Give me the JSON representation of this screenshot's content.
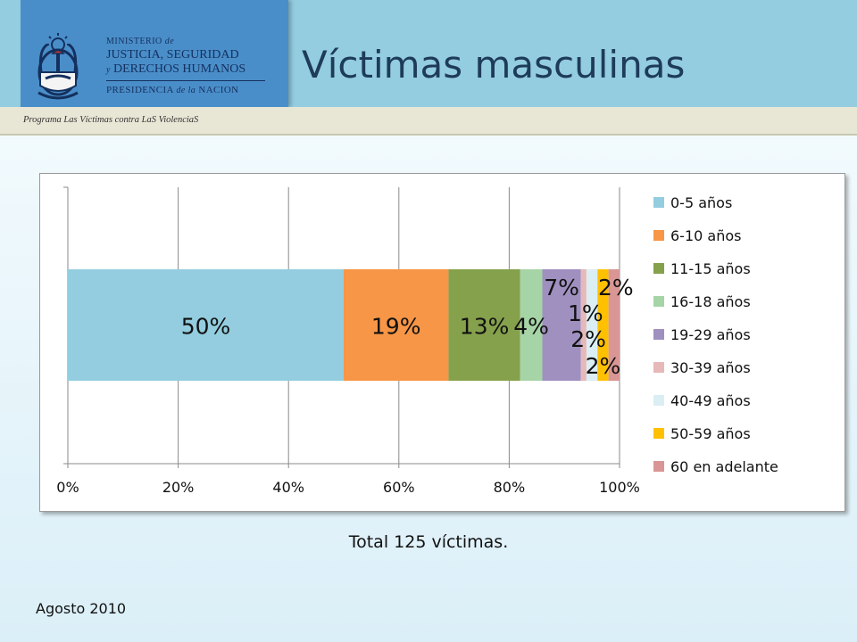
{
  "header": {
    "ministry_line1": "MINISTERIO",
    "ministry_line1_de": "de",
    "ministry_line2": "JUSTICIA, SEGURIDAD",
    "ministry_line3_y": "y",
    "ministry_line3": "DERECHOS HUMANOS",
    "presidency_a": "PRESIDENCIA",
    "presidency_de": "de la",
    "presidency_b": "NACION",
    "program": "Programa Las Víctimas contra LaS ViolenciaS"
  },
  "slide": {
    "title": "Víctimas masculinas",
    "total": "Total 125 víctimas.",
    "date": "Agosto 2010"
  },
  "chart_data": {
    "type": "bar",
    "orientation": "horizontal",
    "stacked": "100%",
    "categories": [
      ""
    ],
    "series": [
      {
        "name": "0-5 años",
        "values": [
          50
        ],
        "label": "50%",
        "color": "#93cddf"
      },
      {
        "name": "6-10 años",
        "values": [
          19
        ],
        "label": "19%",
        "color": "#f79646"
      },
      {
        "name": "11-15 años",
        "values": [
          13
        ],
        "label": "13%",
        "color": "#86a14c"
      },
      {
        "name": "16-18 años",
        "values": [
          4
        ],
        "label": "4%",
        "color": "#a6d4a6"
      },
      {
        "name": "19-29 años",
        "values": [
          7
        ],
        "label": "7%",
        "color": "#a090c0"
      },
      {
        "name": "30-39 años",
        "values": [
          1
        ],
        "label": "1%",
        "color": "#e6b9b8"
      },
      {
        "name": "40-49 años",
        "values": [
          2
        ],
        "label": "2%",
        "color": "#daeef3"
      },
      {
        "name": "50-59 años",
        "values": [
          2
        ],
        "label": "2%",
        "color": "#ffc000"
      },
      {
        "name": "60 en adelante",
        "values": [
          2
        ],
        "label": "2%",
        "color": "#d99694"
      }
    ],
    "xlim": [
      0,
      100
    ],
    "xticks": [
      "0%",
      "20%",
      "40%",
      "60%",
      "80%",
      "100%"
    ],
    "grid": true,
    "legend": "right",
    "title": "",
    "xlabel": "",
    "ylabel": ""
  }
}
